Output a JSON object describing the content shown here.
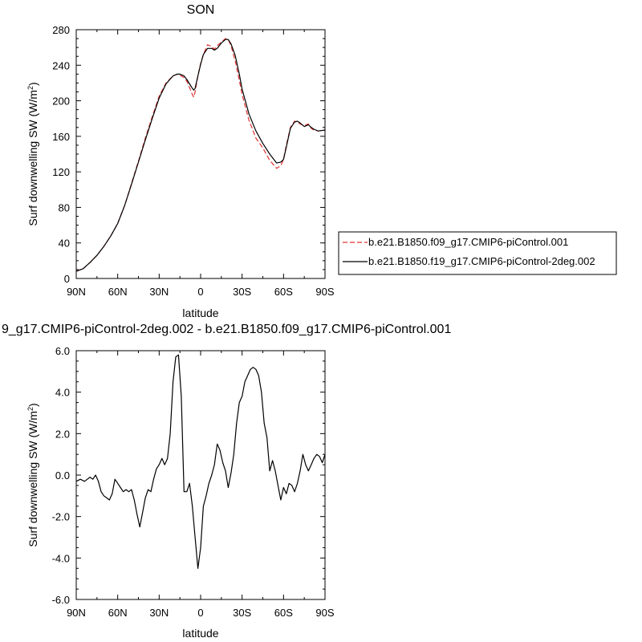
{
  "chart_data": [
    {
      "type": "line",
      "title": "SON",
      "xlabel": "latitude",
      "ylabel": "Surf downwelling SW (W/m",
      "ylabel_sup": "2",
      "ylabel_suffix": ")",
      "xlim": [
        90,
        -90
      ],
      "ylim": [
        0,
        280
      ],
      "x_ticks": [
        90,
        60,
        30,
        0,
        -30,
        -60,
        -90
      ],
      "x_tick_labels": [
        "90N",
        "60N",
        "30N",
        "0",
        "30S",
        "60S",
        "90S"
      ],
      "y_ticks": [
        0,
        40,
        80,
        120,
        160,
        200,
        240,
        280
      ],
      "y_tick_labels": [
        "0",
        "40",
        "80",
        "120",
        "160",
        "200",
        "240",
        "280"
      ],
      "legend_position": "right",
      "series": [
        {
          "name": "b.e21.B1850.f09_g17.CMIP6-piControl.001",
          "color": "#e03030",
          "dash": true,
          "x": [
            90,
            85,
            80,
            75,
            70,
            65,
            60,
            55,
            50,
            45,
            40,
            35,
            30,
            25,
            20,
            17,
            15,
            12,
            10,
            8,
            6,
            5,
            4,
            2,
            0,
            -2,
            -5,
            -8,
            -10,
            -12,
            -15,
            -18,
            -20,
            -22,
            -25,
            -28,
            -30,
            -35,
            -40,
            -45,
            -50,
            -55,
            -58,
            -60,
            -62,
            -65,
            -68,
            -70,
            -72,
            -75,
            -78,
            -80,
            -82,
            -85,
            -90
          ],
          "y": [
            8,
            11,
            18,
            26,
            36,
            48,
            62,
            82,
            107,
            132,
            158,
            182,
            205,
            220,
            228,
            230,
            229,
            226,
            222,
            215,
            207,
            204,
            210,
            228,
            242,
            252,
            263,
            261,
            258,
            262,
            266,
            270,
            269,
            262,
            245,
            223,
            207,
            178,
            158,
            147,
            133,
            124,
            127,
            134,
            150,
            170,
            177,
            176,
            174,
            172,
            174,
            169,
            167,
            166,
            167
          ]
        },
        {
          "name": "b.e21.B1850.f19_g17.CMIP6-piControl-2deg.002",
          "color": "#000000",
          "dash": false,
          "x": [
            90,
            85,
            80,
            75,
            70,
            65,
            60,
            55,
            50,
            45,
            40,
            35,
            30,
            25,
            20,
            17,
            15,
            12,
            10,
            8,
            6,
            5,
            4,
            2,
            0,
            -2,
            -5,
            -8,
            -10,
            -12,
            -15,
            -18,
            -20,
            -22,
            -25,
            -28,
            -30,
            -35,
            -40,
            -45,
            -50,
            -55,
            -58,
            -60,
            -62,
            -65,
            -68,
            -70,
            -72,
            -75,
            -78,
            -80,
            -82,
            -85,
            -90
          ],
          "y": [
            8,
            11,
            18,
            26,
            36,
            48,
            62,
            82,
            106,
            131,
            156,
            180,
            203,
            219,
            228,
            230,
            230,
            228,
            224,
            219,
            214,
            212,
            214,
            228,
            241,
            252,
            259,
            259,
            257,
            259,
            265,
            269,
            269,
            264,
            251,
            230,
            213,
            185,
            166,
            152,
            140,
            130,
            131,
            134,
            148,
            169,
            176,
            177,
            175,
            171,
            173,
            170,
            168,
            166,
            167
          ]
        }
      ]
    },
    {
      "type": "line",
      "title": "9_g17.CMIP6-piControl-2deg.002 - b.e21.B1850.f09_g17.CMIP6-piControl.001",
      "xlabel": "latitude",
      "ylabel": "Surf downwelling SW (W/m",
      "ylabel_sup": "2",
      "ylabel_suffix": ")",
      "xlim": [
        90,
        -90
      ],
      "ylim": [
        -6,
        6
      ],
      "x_ticks": [
        90,
        60,
        30,
        0,
        -30,
        -60,
        -90
      ],
      "x_tick_labels": [
        "90N",
        "60N",
        "30N",
        "0",
        "30S",
        "60S",
        "90S"
      ],
      "y_ticks": [
        -6,
        -4,
        -2,
        0,
        2,
        4,
        6
      ],
      "y_tick_labels": [
        "-6.0",
        "-4.0",
        "-2.0",
        "0.0",
        "2.0",
        "4.0",
        "6.0"
      ],
      "series": [
        {
          "name": "",
          "color": "#000000",
          "dash": false,
          "x": [
            90,
            87,
            84,
            82,
            80,
            78,
            76,
            74,
            72,
            70,
            68,
            66,
            64,
            62,
            60,
            58,
            56,
            54,
            52,
            50,
            48,
            46,
            44,
            42,
            40,
            38,
            36,
            34,
            32,
            30,
            28,
            26,
            24,
            22,
            20,
            18,
            16,
            14,
            12,
            10,
            8,
            6,
            4,
            2,
            0,
            -2,
            -4,
            -6,
            -8,
            -10,
            -12,
            -14,
            -16,
            -18,
            -20,
            -22,
            -24,
            -26,
            -28,
            -30,
            -32,
            -34,
            -36,
            -38,
            -40,
            -42,
            -44,
            -46,
            -48,
            -50,
            -52,
            -54,
            -56,
            -58,
            -60,
            -62,
            -64,
            -66,
            -68,
            -70,
            -72,
            -74,
            -76,
            -78,
            -80,
            -82,
            -84,
            -86,
            -88,
            -90
          ],
          "y": [
            -0.3,
            -0.2,
            -0.3,
            -0.2,
            -0.1,
            -0.2,
            0.0,
            -0.3,
            -0.8,
            -1.0,
            -1.1,
            -1.2,
            -0.9,
            -0.2,
            -0.4,
            -0.6,
            -0.8,
            -0.7,
            -0.8,
            -0.7,
            -1.2,
            -1.9,
            -2.5,
            -1.8,
            -1.1,
            -0.7,
            -0.8,
            -0.2,
            0.3,
            0.5,
            0.8,
            0.5,
            0.8,
            2.0,
            4.5,
            5.7,
            5.8,
            3.8,
            -0.8,
            -0.8,
            -0.4,
            -1.5,
            -3.0,
            -4.5,
            -3.5,
            -1.5,
            -1.0,
            -0.4,
            0.0,
            0.5,
            1.5,
            1.2,
            0.6,
            0.2,
            -0.6,
            0.1,
            1.0,
            2.5,
            3.5,
            3.8,
            4.5,
            4.8,
            5.1,
            5.2,
            5.1,
            4.8,
            4.0,
            2.5,
            1.8,
            0.2,
            0.7,
            0.2,
            -0.5,
            -1.2,
            -0.6,
            -0.9,
            -0.4,
            -0.5,
            -0.8,
            -0.4,
            0.2,
            1.0,
            0.5,
            0.2,
            0.5,
            0.8,
            1.0,
            0.9,
            0.6,
            1.0
          ]
        }
      ]
    }
  ]
}
